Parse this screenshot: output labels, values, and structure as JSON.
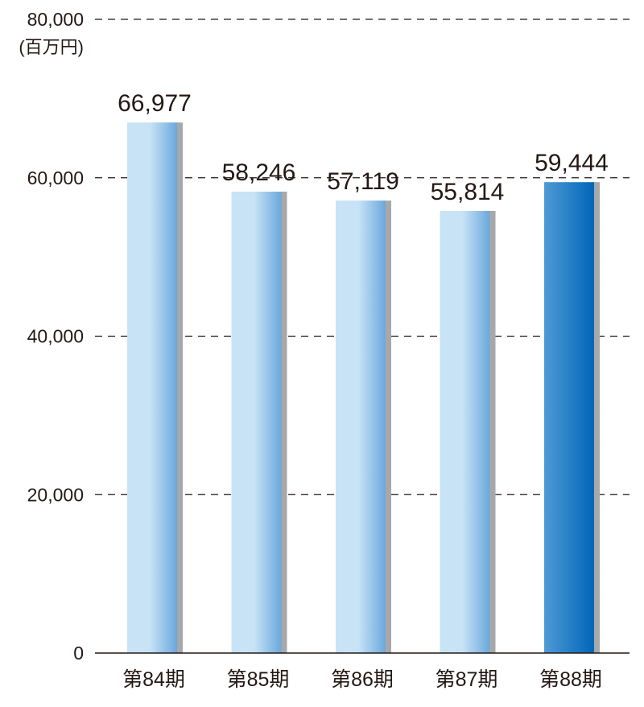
{
  "chart_data": {
    "type": "bar",
    "categories": [
      "第84期",
      "第85期",
      "第86期",
      "第87期",
      "第88期"
    ],
    "values": [
      66977,
      58246,
      57119,
      55814,
      59444
    ],
    "value_labels": [
      "66,977",
      "58,246",
      "57,119",
      "55,814",
      "59,444"
    ],
    "ylabel": "(百万円)",
    "ylim": [
      0,
      80000
    ],
    "yticks": [
      0,
      20000,
      40000,
      60000,
      80000
    ],
    "ytick_labels": [
      "0",
      "20,000",
      "40,000",
      "60,000",
      "80,000"
    ],
    "grid": true,
    "highlight_index": 4,
    "colors": {
      "bar_light": "#c8e3f6",
      "bar_mid": "#6aa8dc",
      "highlight_start": "#4f9ad6",
      "highlight_end": "#0066b8",
      "shadow": "#a6a8aa",
      "axis": "#231815",
      "grid": "#231815"
    }
  }
}
